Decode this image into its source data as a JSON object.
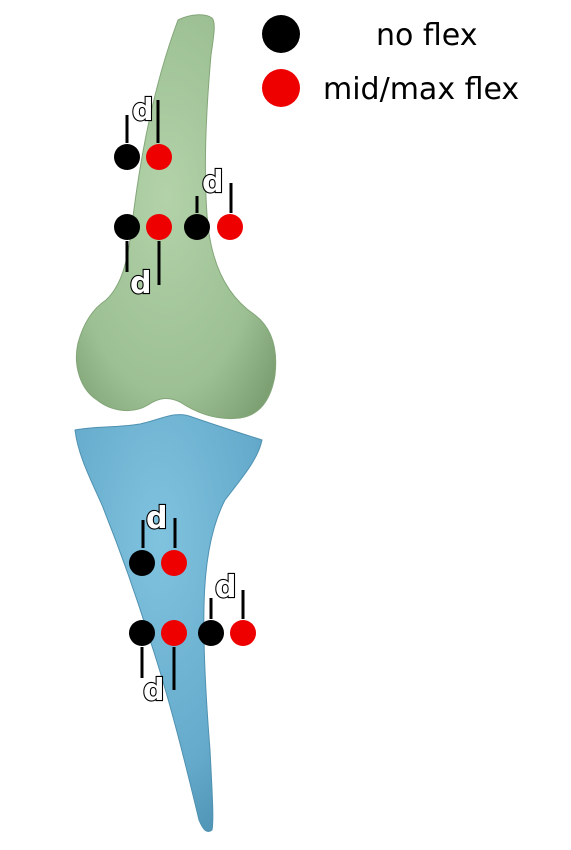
{
  "legend": {
    "no_flex_label": "no flex",
    "flex_label": "mid/max flex"
  },
  "marker_label": "d",
  "colors": {
    "no_flex": "#000000",
    "flex": "#ee0000",
    "femur": "#a4c49c",
    "tibia": "#6ab0cc"
  }
}
